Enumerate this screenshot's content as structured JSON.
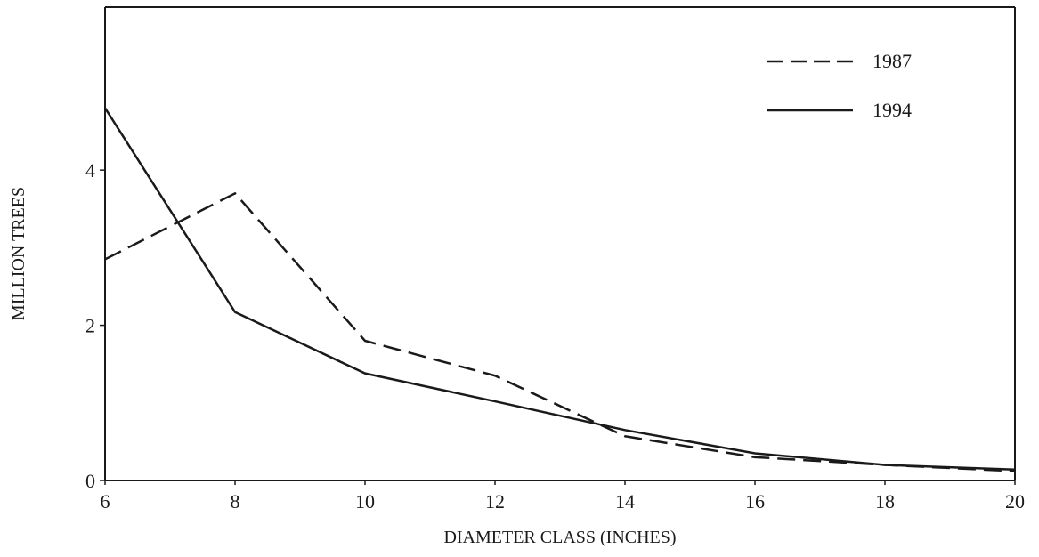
{
  "chart_data": {
    "type": "line",
    "title": "",
    "xlabel": "DIAMETER  CLASS  (INCHES)",
    "ylabel": "MILLION TREES",
    "x": [
      6,
      8,
      10,
      12,
      14,
      16,
      18,
      20
    ],
    "xlim": [
      6,
      20
    ],
    "ylim": [
      0,
      6.1
    ],
    "xticks": [
      "6",
      "8",
      "10",
      "12",
      "14",
      "16",
      "18",
      "20"
    ],
    "yticks": [
      "0",
      "2",
      "4"
    ],
    "ytick_values": [
      0,
      2,
      4
    ],
    "grid": false,
    "legend_position": "top-right",
    "series": [
      {
        "name": "1987",
        "style": "dashed",
        "color": "#1a1a1a",
        "values": [
          2.85,
          3.7,
          1.8,
          1.35,
          0.57,
          0.3,
          0.2,
          0.12
        ]
      },
      {
        "name": "1994",
        "style": "solid",
        "color": "#1a1a1a",
        "values": [
          4.8,
          2.17,
          1.38,
          1.02,
          0.65,
          0.35,
          0.2,
          0.14
        ]
      }
    ]
  }
}
